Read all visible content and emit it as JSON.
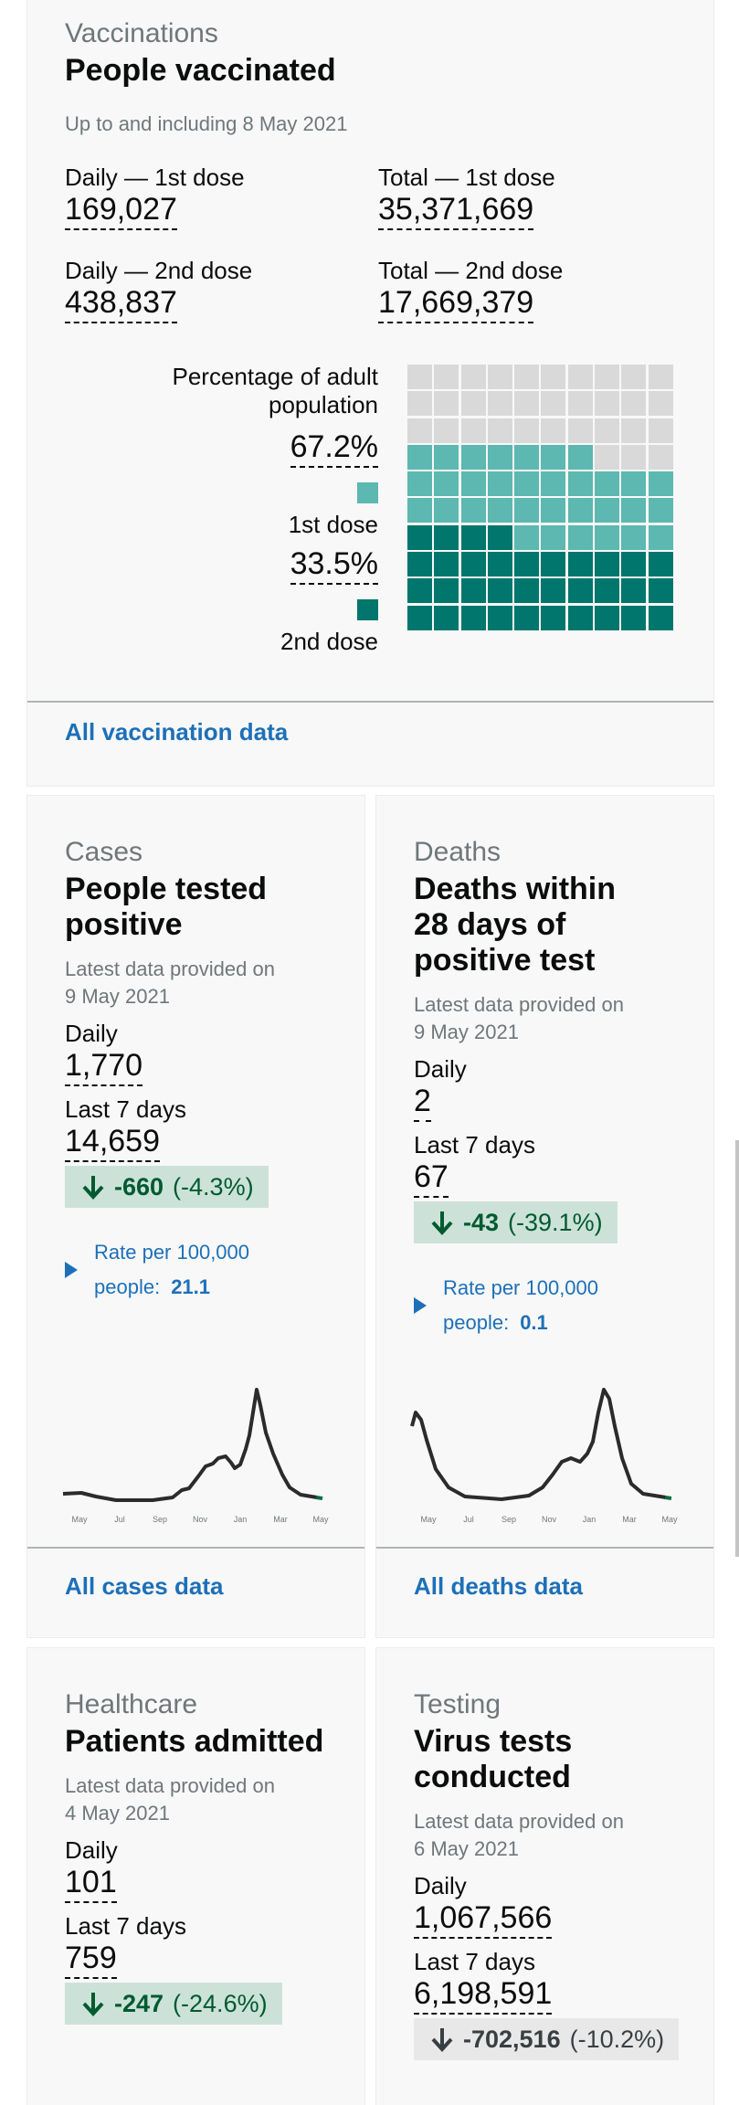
{
  "vaccinations": {
    "caption": "Vaccinations",
    "title": "People vaccinated",
    "subtitle": "Up to and including 8 May 2021",
    "daily_1st_label": "Daily — 1st dose",
    "daily_1st_value": "169,027",
    "total_1st_label": "Total — 1st dose",
    "total_1st_value": "35,371,669",
    "daily_2nd_label": "Daily — 2nd dose",
    "daily_2nd_value": "438,837",
    "total_2nd_label": "Total — 2nd dose",
    "total_2nd_value": "17,669,379",
    "percentage_label": "Percentage of adult population",
    "pct_1st": "67.2%",
    "pct_1st_label": "1st dose",
    "pct_2nd": "33.5%",
    "pct_2nd_label": "2nd dose",
    "waffle": {
      "first_dose_fraction": 0.672,
      "second_dose_fraction": 0.335
    },
    "colors": {
      "first_dose": "#5cb8b0",
      "second_dose": "#00766d",
      "empty": "#d9d9d9"
    },
    "link": "All vaccination data"
  },
  "cases": {
    "caption": "Cases",
    "title": "People tested positive",
    "subtitle": "Latest data provided on 9 May 2021",
    "daily_label": "Daily",
    "daily_value": "1,770",
    "week_label": "Last 7 days",
    "week_value": "14,659",
    "change_value": "-660",
    "change_pct": "(-4.3%)",
    "rate_label": "Rate per 100,000 people:",
    "rate_value": "21.1",
    "spark_months": [
      "May",
      "Jul",
      "Sep",
      "Nov",
      "Jan",
      "Mar",
      "May"
    ],
    "link": "All cases data"
  },
  "deaths": {
    "caption": "Deaths",
    "title": "Deaths within 28 days of positive test",
    "subtitle": "Latest data provided on 9 May 2021",
    "daily_label": "Daily",
    "daily_value": "2",
    "week_label": "Last 7 days",
    "week_value": "67",
    "change_value": "-43",
    "change_pct": "(-39.1%)",
    "rate_label": "Rate per 100,000 people:",
    "rate_value": "0.1",
    "spark_months": [
      "May",
      "Jul",
      "Sep",
      "Nov",
      "Jan",
      "Mar",
      "May"
    ],
    "link": "All deaths data"
  },
  "healthcare": {
    "caption": "Healthcare",
    "title": "Patients admitted",
    "subtitle": "Latest data provided on 4 May 2021",
    "daily_label": "Daily",
    "daily_value": "101",
    "week_label": "Last 7 days",
    "week_value": "759",
    "change_value": "-247",
    "change_pct": "(-24.6%)"
  },
  "testing": {
    "caption": "Testing",
    "title": "Virus tests conducted",
    "subtitle": "Latest data provided on 6 May 2021",
    "daily_label": "Daily",
    "daily_value": "1,067,566",
    "week_label": "Last 7 days",
    "week_value": "6,198,591",
    "change_value": "-702,516",
    "change_pct": "(-10.2%)"
  }
}
